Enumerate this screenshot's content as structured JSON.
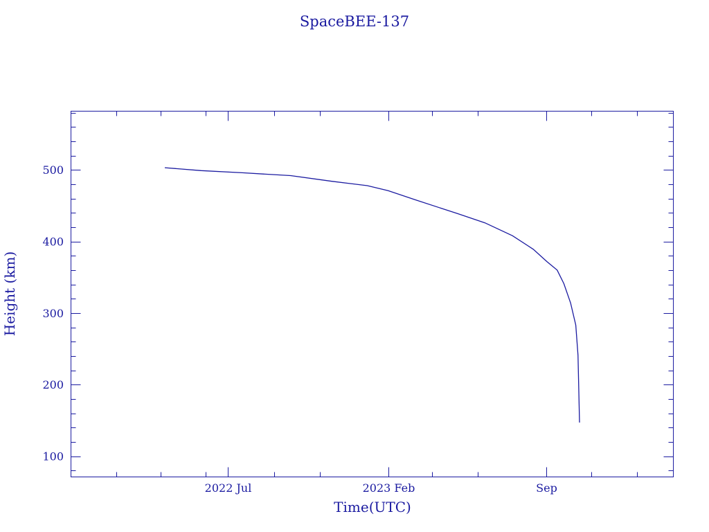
{
  "chart_data": {
    "type": "line",
    "title": "SpaceBEE-137",
    "xlabel": "Time(UTC)",
    "ylabel": "Height (km)",
    "xlim": [
      "2021-12-02",
      "2024-02-19"
    ],
    "ylim": [
      71,
      582
    ],
    "x_ticks": [
      {
        "date": "2022-07-01",
        "label": "2022 Jul"
      },
      {
        "date": "2023-02-01",
        "label": "2023 Feb"
      },
      {
        "date": "2023-09-01",
        "label": "Sep"
      }
    ],
    "y_ticks": [
      100,
      200,
      300,
      400,
      500
    ],
    "grid": false,
    "color": "#1a1aa0",
    "series": [
      {
        "x": [
          "2022-04-07",
          "2022-05-26",
          "2022-07-20",
          "2022-09-23",
          "2022-11-18",
          "2023-01-04",
          "2023-02-01",
          "2023-03-10",
          "2023-05-05",
          "2023-06-11",
          "2023-07-18",
          "2023-08-15",
          "2023-09-02",
          "2023-09-16",
          "2023-09-25",
          "2023-10-04",
          "2023-10-11",
          "2023-10-14",
          "2023-10-16"
        ],
        "y": [
          503,
          499,
          496,
          492,
          484,
          478,
          471,
          458,
          439,
          426,
          408,
          389,
          372,
          360,
          341,
          314,
          283,
          241,
          147
        ]
      }
    ]
  }
}
